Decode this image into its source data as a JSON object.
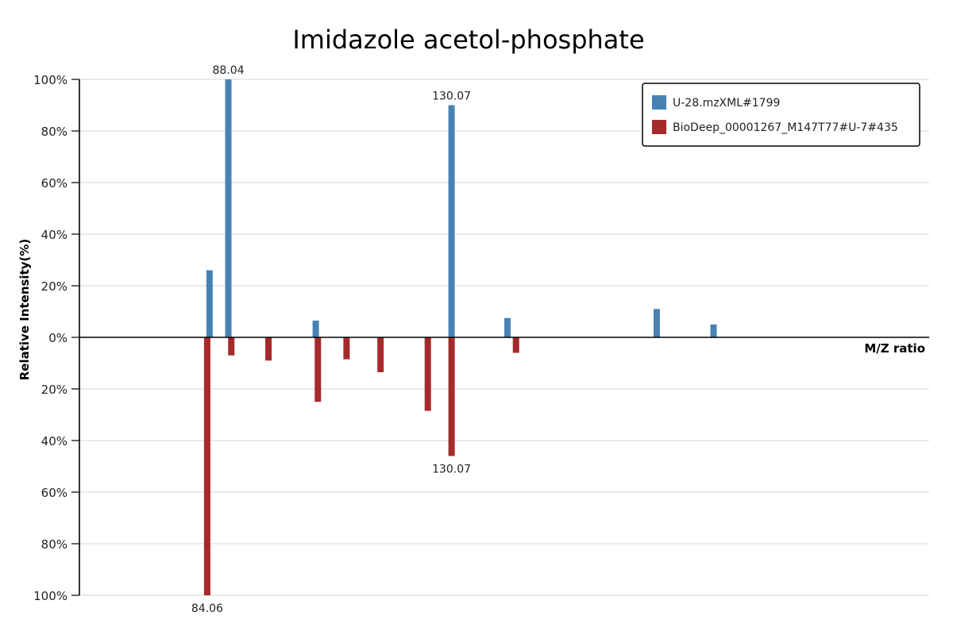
{
  "chart_data": {
    "type": "bar",
    "title": "Imidazole acetol-phosphate",
    "xlabel": "M/Z ratio",
    "ylabel": "Relative Intensity(%)",
    "ylim": [
      -100,
      100
    ],
    "xlim": [
      60,
      220
    ],
    "y_ticks": [
      "100%",
      "80%",
      "60%",
      "40%",
      "20%",
      "0%",
      "20%",
      "40%",
      "60%",
      "80%",
      "100%"
    ],
    "grid": true,
    "legend": {
      "placement": "top-right"
    },
    "series": [
      {
        "name": "U-28.mzXML#1799",
        "color": "#4682b4",
        "direction": "up",
        "peaks": [
          {
            "mz": 84.5,
            "intensity": 26
          },
          {
            "mz": 88.04,
            "intensity": 100,
            "label": "88.04"
          },
          {
            "mz": 104.5,
            "intensity": 6.5
          },
          {
            "mz": 130.07,
            "intensity": 90,
            "label": "130.07"
          },
          {
            "mz": 140.6,
            "intensity": 7.5
          },
          {
            "mz": 168.7,
            "intensity": 11
          },
          {
            "mz": 179.4,
            "intensity": 5
          }
        ]
      },
      {
        "name": "BioDeep_00001267_M147T77#U-7#435",
        "color": "#a52a2a",
        "direction": "down",
        "peaks": [
          {
            "mz": 84.06,
            "intensity": 100,
            "label": "84.06"
          },
          {
            "mz": 88.6,
            "intensity": 7
          },
          {
            "mz": 95.6,
            "intensity": 9
          },
          {
            "mz": 104.9,
            "intensity": 25
          },
          {
            "mz": 110.3,
            "intensity": 8.5
          },
          {
            "mz": 116.7,
            "intensity": 13.5
          },
          {
            "mz": 125.6,
            "intensity": 28.5
          },
          {
            "mz": 130.07,
            "intensity": 46,
            "label": "130.07"
          },
          {
            "mz": 142.2,
            "intensity": 6
          }
        ]
      }
    ]
  }
}
